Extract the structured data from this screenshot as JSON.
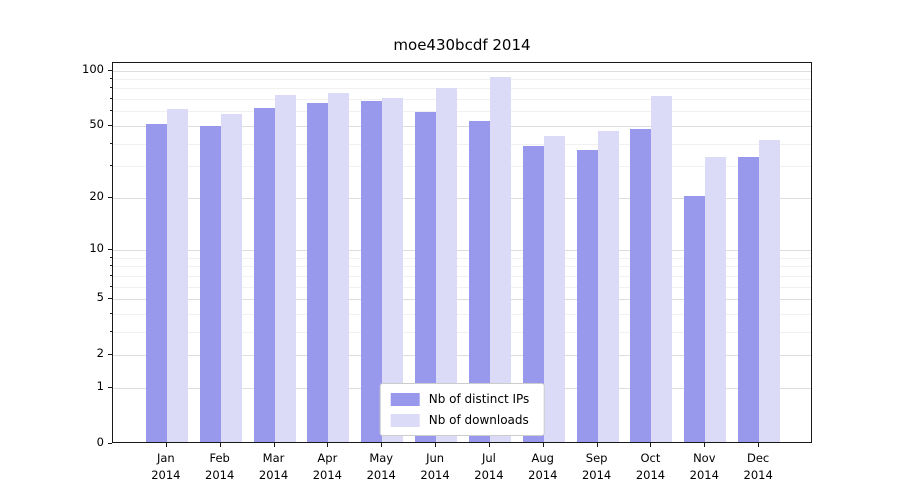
{
  "chart_data": {
    "type": "bar",
    "title": "moe430bcdf 2014",
    "categories": [
      "Jan",
      "Feb",
      "Mar",
      "Apr",
      "May",
      "Jun",
      "Jul",
      "Aug",
      "Sep",
      "Oct",
      "Nov",
      "Dec"
    ],
    "x_sublabel": "2014",
    "series": [
      {
        "name": "Nb of distinct IPs",
        "color": "#9898ec",
        "values": [
          50,
          49,
          61,
          65,
          67,
          58,
          52,
          38,
          36,
          47,
          20,
          33
        ]
      },
      {
        "name": "Nb of downloads",
        "color": "#dbdbf8",
        "values": [
          60,
          57,
          72,
          74,
          69,
          79,
          90,
          43,
          46,
          71,
          33,
          41
        ]
      }
    ],
    "yscale": "log1p",
    "yticks": [
      0,
      1,
      2,
      5,
      10,
      20,
      50,
      100
    ],
    "minor_yticks": [
      3,
      4,
      6,
      7,
      8,
      9,
      30,
      40,
      60,
      70,
      80,
      90
    ],
    "ylim": [
      0,
      110
    ],
    "grid": true,
    "legend_position": "lower center"
  }
}
